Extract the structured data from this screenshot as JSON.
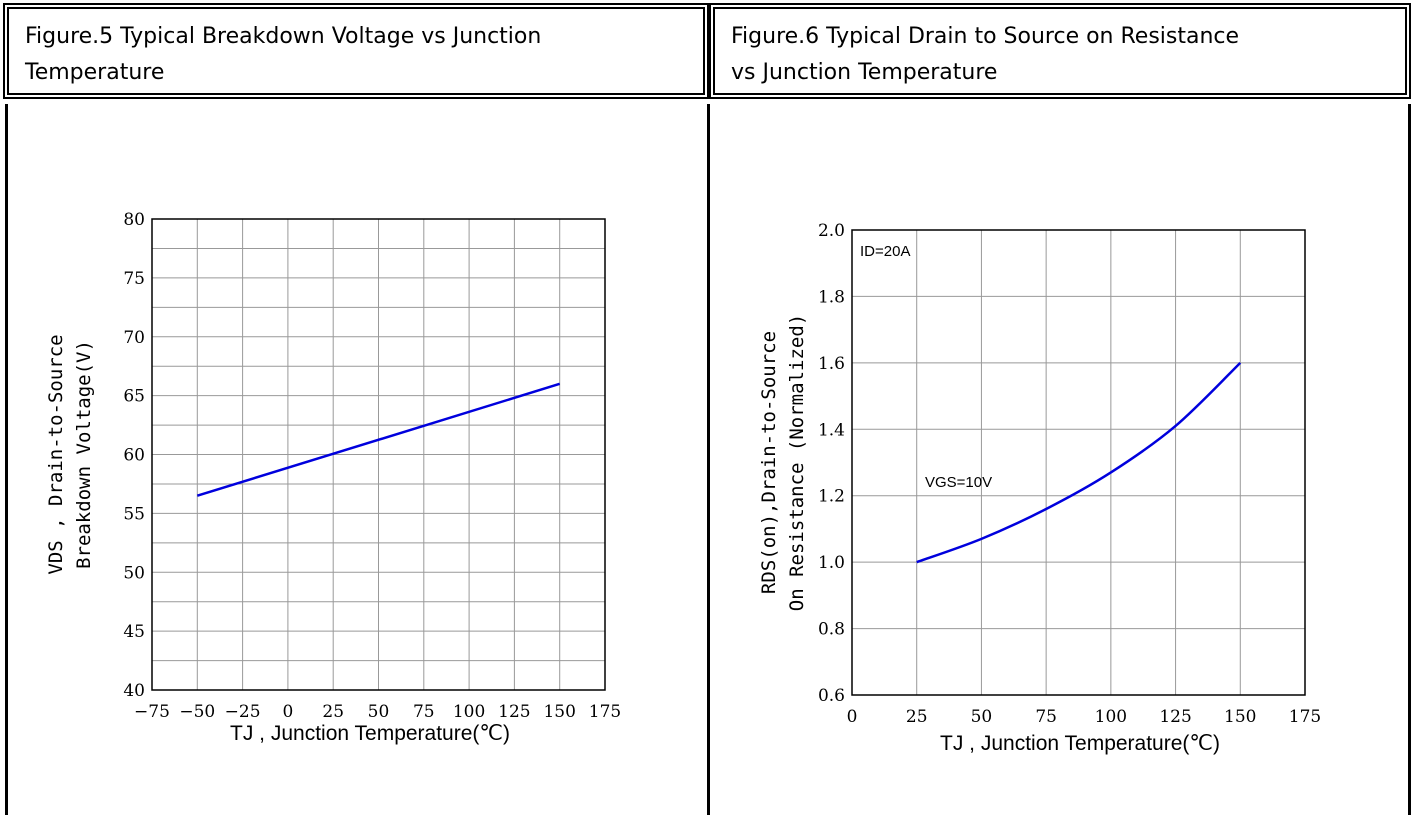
{
  "headers": {
    "fig5": [
      "Figure.5 Typical Breakdown Voltage vs Junction",
      "Temperature"
    ],
    "fig6": [
      "Figure.6 Typical Drain to Source on Resistance",
      "vs Junction Temperature"
    ]
  },
  "colors": {
    "series": "#0000dd",
    "grid": "#999999",
    "axis": "#000000"
  },
  "chart_data": [
    {
      "type": "line",
      "title": "Figure.5 Typical Breakdown Voltage vs Junction Temperature",
      "xlabel": "TJ , Junction Temperature(℃)",
      "ylabel": [
        "VDS , Drain-to-Source",
        "Breakdown Voltage(V)"
      ],
      "xlim": [
        -75,
        175
      ],
      "ylim": [
        40,
        80
      ],
      "xticks": [
        -75,
        -50,
        -25,
        0,
        25,
        50,
        75,
        100,
        125,
        150,
        175
      ],
      "yticks": [
        40,
        45,
        50,
        55,
        60,
        65,
        70,
        75,
        80
      ],
      "yticklabels": [
        "40",
        "45",
        "50",
        "55",
        "60",
        "65",
        "70",
        "75",
        "80"
      ],
      "grid": true,
      "series": [
        {
          "x": [
            -50,
            150
          ],
          "y": [
            56.5,
            66.0
          ]
        }
      ]
    },
    {
      "type": "line",
      "title": "Figure.6 Typical Drain to Source on Resistance vs Junction Temperature",
      "xlabel": "TJ , Junction Temperature(℃)",
      "ylabel": [
        "RDS(on),Drain-to-Source",
        "On Resistance (Normalized)"
      ],
      "xlim": [
        0,
        175
      ],
      "ylim": [
        0.6,
        2.0
      ],
      "xticks": [
        0,
        25,
        50,
        75,
        100,
        125,
        150,
        175
      ],
      "yticks": [
        0.6,
        0.8,
        1.0,
        1.2,
        1.4,
        1.6,
        1.8,
        2.0
      ],
      "yticklabels": [
        "0.6",
        "0.8",
        "1.0",
        "1.2",
        "1.4",
        "1.6",
        "1.8",
        "2.0"
      ],
      "grid": true,
      "annotations": [
        "ID=20A",
        "VGS=10V"
      ],
      "series": [
        {
          "x": [
            25,
            50,
            75,
            100,
            125,
            150
          ],
          "y": [
            1.0,
            1.07,
            1.16,
            1.27,
            1.41,
            1.6
          ]
        }
      ]
    }
  ]
}
